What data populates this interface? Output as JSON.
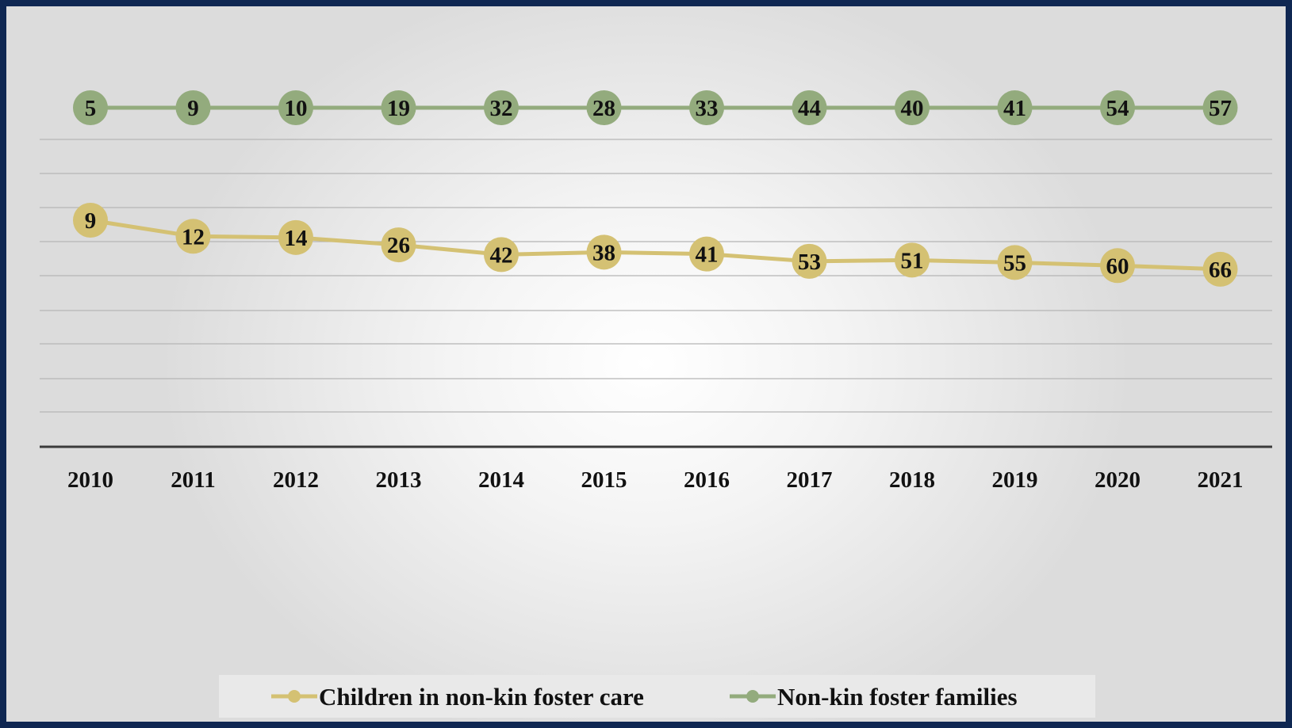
{
  "chart_data": {
    "type": "line",
    "categories": [
      "2010",
      "2011",
      "2012",
      "2013",
      "2014",
      "2015",
      "2016",
      "2017",
      "2018",
      "2019",
      "2020",
      "2021"
    ],
    "series": [
      {
        "name": "Children in non-kin foster care",
        "values": [
          9,
          12,
          14,
          26,
          42,
          38,
          41,
          53,
          51,
          55,
          60,
          66
        ],
        "color": "#d4c173"
      },
      {
        "name": "Non-kin foster families",
        "values": [
          5,
          9,
          10,
          19,
          32,
          28,
          33,
          44,
          40,
          41,
          54,
          57
        ],
        "color": "#93ab7d"
      }
    ],
    "title": "",
    "xlabel": "",
    "ylabel": "",
    "grid": true,
    "legend_position": "bottom",
    "data_labels": true
  }
}
